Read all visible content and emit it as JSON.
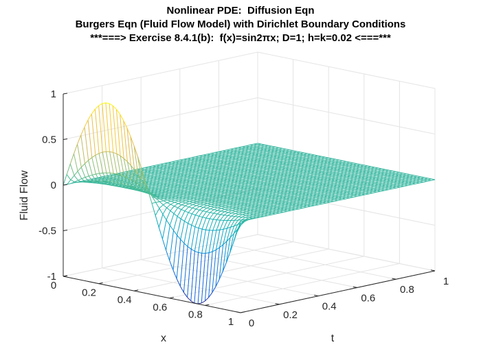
{
  "title_lines": [
    "Nonlinear PDE:  Diffusion Eqn",
    "Burgers Eqn (Fluid Flow Model) with Dirichlet Boundary Conditions",
    "***===> Exercise 8.4.1(b):  f(x)=sin2πx; D=1; h=k=0.02 <===***"
  ],
  "chart_data": {
    "type": "surface-mesh",
    "xlabel": "x",
    "ylabel": "t",
    "zlabel": "Fluid Flow",
    "x_ticks": [
      "0",
      "0.2",
      "0.4",
      "0.6",
      "0.8",
      "1"
    ],
    "t_ticks": [
      "0",
      "0.2",
      "0.4",
      "0.6",
      "0.8",
      "1"
    ],
    "z_ticks": [
      "-1",
      "-0.5",
      "0",
      "0.5",
      "1"
    ],
    "xlim": [
      0,
      1
    ],
    "tlim": [
      0,
      1
    ],
    "zlim": [
      -1,
      1
    ],
    "grid": true,
    "colormap": "parula",
    "h": 0.02,
    "k": 0.02,
    "D": 1,
    "initial_condition": "sin(2*pi*x)",
    "boundary": "u(0,t)=u(1,t)=0",
    "sample_profiles": [
      {
        "t": 0.0,
        "x": [
          0,
          0.25,
          0.5,
          0.75,
          1
        ],
        "u": [
          0,
          1.0,
          0,
          -1.0,
          0
        ]
      },
      {
        "t": 0.02,
        "x": [
          0,
          0.25,
          0.5,
          0.75,
          1
        ],
        "u": [
          0,
          0.45,
          0,
          -0.45,
          0
        ]
      },
      {
        "t": 0.06,
        "x": [
          0,
          0.25,
          0.5,
          0.75,
          1
        ],
        "u": [
          0,
          0.09,
          0,
          -0.09,
          0
        ]
      },
      {
        "t": 0.2,
        "x": [
          0,
          0.25,
          0.5,
          0.75,
          1
        ],
        "u": [
          0,
          0.0,
          0,
          0.0,
          0
        ]
      }
    ]
  }
}
